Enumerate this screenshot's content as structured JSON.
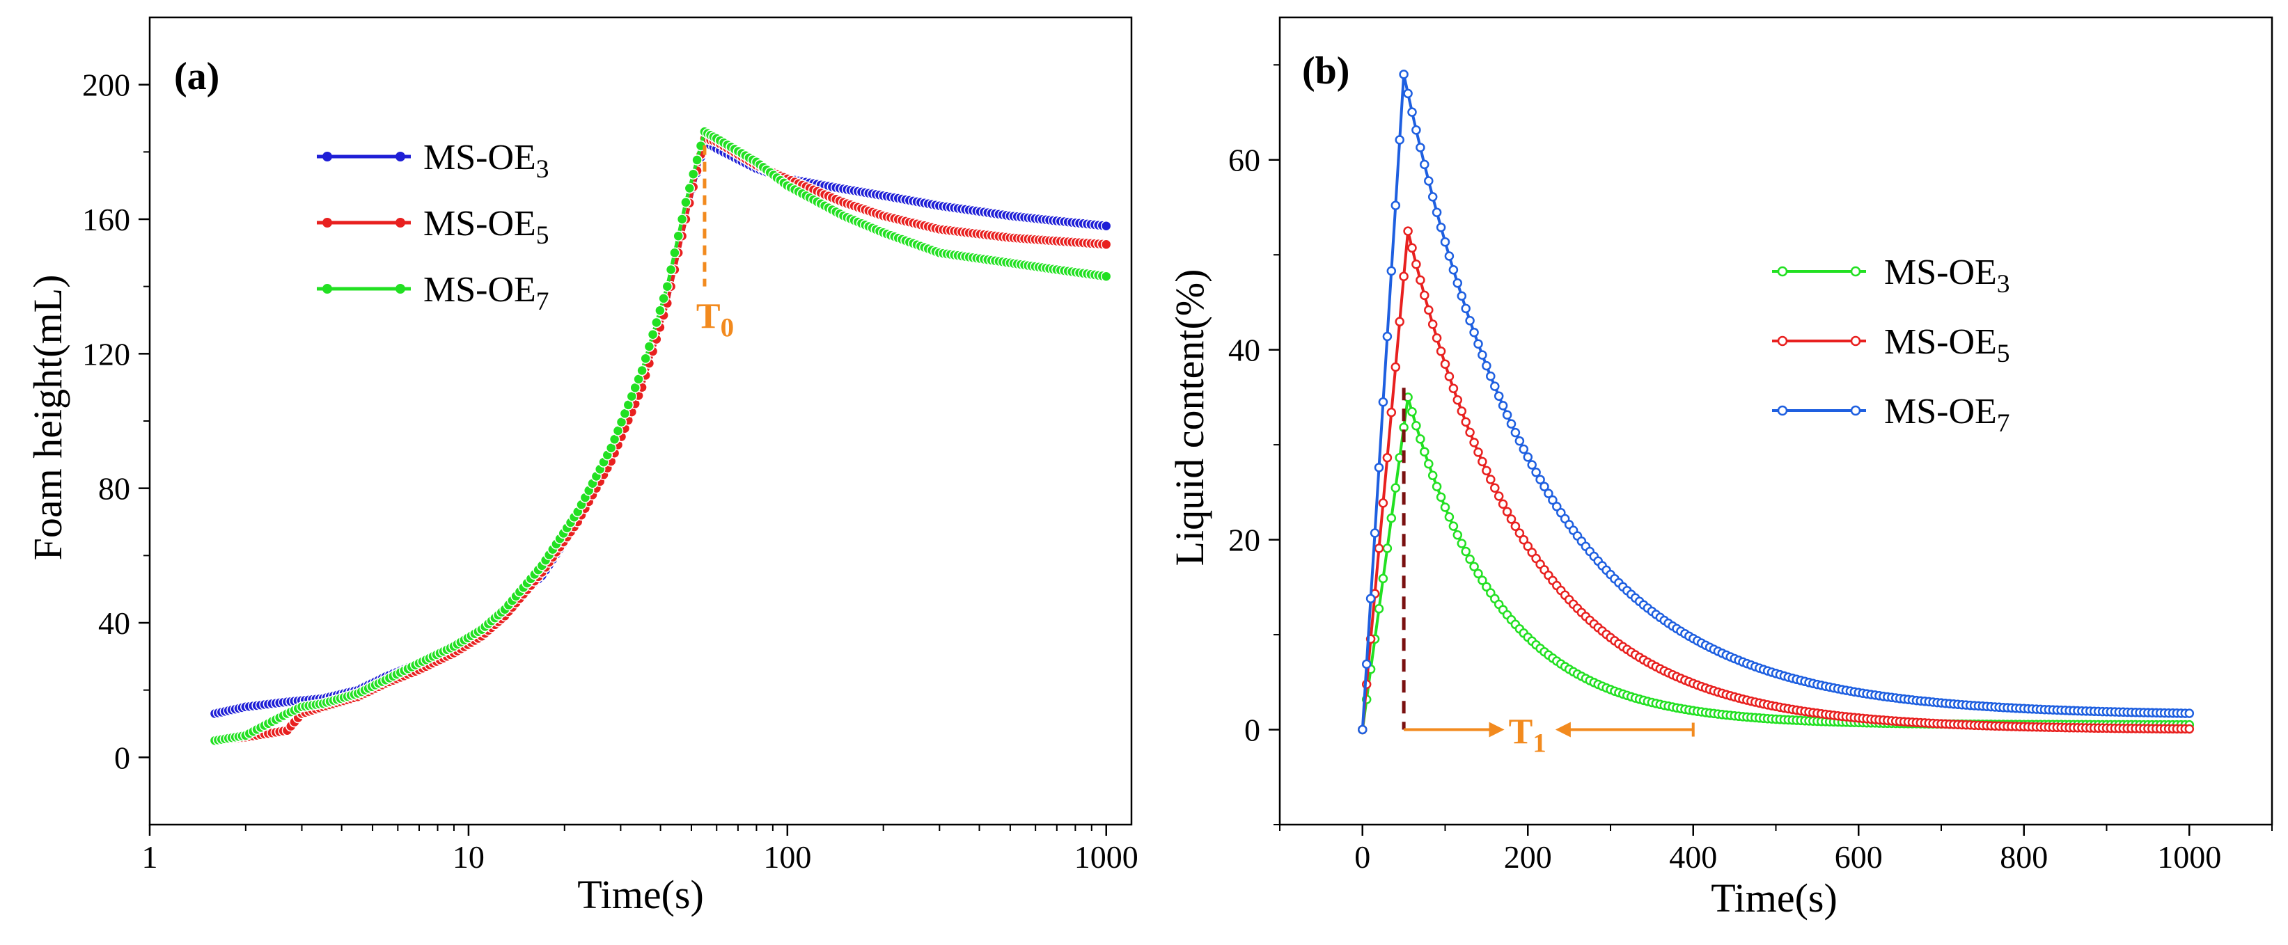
{
  "chart_data": [
    {
      "panel_label": "(a)",
      "type": "line",
      "x_scale": "log",
      "xlabel": "Time(s)",
      "ylabel": "Foam height(mL)",
      "xlim": [
        1,
        1200
      ],
      "ylim": [
        -20,
        220
      ],
      "x_ticks": [
        1,
        10,
        100,
        1000
      ],
      "x_tick_labels": [
        "1",
        "10",
        "100",
        "1000"
      ],
      "y_ticks": [
        0,
        40,
        80,
        120,
        160,
        200
      ],
      "y_tick_labels": [
        "0",
        "40",
        "80",
        "120",
        "160",
        "200"
      ],
      "legend_position": "top-left",
      "annotation": {
        "text": "T",
        "subscript": "0",
        "x": 55,
        "y_from": 182,
        "y_to": 140,
        "color": "#f28a1e"
      },
      "series": [
        {
          "name": "MS-OE",
          "subscript": "3",
          "color": "#1f1fd6",
          "points": [
            [
              1.6,
              13
            ],
            [
              2,
              15
            ],
            [
              2.7,
              16.5
            ],
            [
              3.5,
              17.5
            ],
            [
              4.5,
              20
            ],
            [
              5.5,
              24
            ],
            [
              7,
              28
            ],
            [
              9,
              33
            ],
            [
              11,
              38
            ],
            [
              13,
              44
            ],
            [
              17,
              54
            ],
            [
              22,
              70
            ],
            [
              28,
              88
            ],
            [
              35,
              110
            ],
            [
              42,
              135
            ],
            [
              48,
              160
            ],
            [
              55,
              183
            ],
            [
              60,
              181
            ],
            [
              80,
              175
            ],
            [
              100,
              172
            ],
            [
              150,
              169
            ],
            [
              200,
              167
            ],
            [
              300,
              164
            ],
            [
              500,
              161
            ],
            [
              700,
              159.5
            ],
            [
              1000,
              158
            ]
          ]
        },
        {
          "name": "MS-OE",
          "subscript": "5",
          "color": "#e8201f",
          "points": [
            [
              1.6,
              5
            ],
            [
              2,
              6
            ],
            [
              2.7,
              8
            ],
            [
              3,
              13
            ],
            [
              3.5,
              15
            ],
            [
              4.5,
              18
            ],
            [
              5.5,
              22
            ],
            [
              7,
              26
            ],
            [
              9,
              31
            ],
            [
              11,
              36
            ],
            [
              13,
              42
            ],
            [
              17,
              55
            ],
            [
              22,
              70
            ],
            [
              28,
              88
            ],
            [
              35,
              110
            ],
            [
              42,
              135
            ],
            [
              48,
              160
            ],
            [
              55,
              184
            ],
            [
              60,
              183
            ],
            [
              80,
              176
            ],
            [
              100,
              172
            ],
            [
              150,
              165
            ],
            [
              200,
              161
            ],
            [
              300,
              157
            ],
            [
              500,
              154.5
            ],
            [
              700,
              153.5
            ],
            [
              1000,
              152.5
            ]
          ]
        },
        {
          "name": "MS-OE",
          "subscript": "7",
          "color": "#22e022",
          "points": [
            [
              1.6,
              5
            ],
            [
              2,
              6.5
            ],
            [
              2.7,
              13
            ],
            [
              3,
              15
            ],
            [
              3.5,
              16
            ],
            [
              4.5,
              19
            ],
            [
              5.5,
              23
            ],
            [
              7,
              28
            ],
            [
              9,
              33
            ],
            [
              11,
              38
            ],
            [
              13,
              44
            ],
            [
              17,
              57
            ],
            [
              22,
              73
            ],
            [
              28,
              92
            ],
            [
              35,
              115
            ],
            [
              42,
              140
            ],
            [
              48,
              165
            ],
            [
              55,
              186
            ],
            [
              60,
              184
            ],
            [
              80,
              177
            ],
            [
              100,
              170
            ],
            [
              150,
              161
            ],
            [
              200,
              156
            ],
            [
              300,
              150
            ],
            [
              500,
              147
            ],
            [
              700,
              145
            ],
            [
              1000,
              143
            ]
          ]
        }
      ]
    },
    {
      "panel_label": "(b)",
      "type": "line",
      "x_scale": "linear",
      "xlabel": "Time(s)",
      "ylabel": "Liquid content(%)",
      "xlim": [
        -100,
        1100
      ],
      "ylim": [
        -10,
        75
      ],
      "x_ticks": [
        0,
        200,
        400,
        600,
        800,
        1000
      ],
      "x_tick_labels": [
        "0",
        "200",
        "400",
        "600",
        "800",
        "1000"
      ],
      "y_ticks": [
        0,
        20,
        40,
        60
      ],
      "y_tick_labels": [
        "0",
        "20",
        "40",
        "60"
      ],
      "legend_position": "center-right",
      "annotation": {
        "text": "T",
        "subscript": "1",
        "x_start": 50,
        "x_end": 400,
        "y": 0,
        "color": "#f28a1e",
        "dash_color": "#7a1010"
      },
      "series": [
        {
          "name": "MS-OE",
          "subscript": "3",
          "color": "#22e022",
          "peak_time": 55,
          "peak_value": 35,
          "final_value": 0.5,
          "decay_tau": 110
        },
        {
          "name": "MS-OE",
          "subscript": "5",
          "color": "#e8201f",
          "peak_time": 55,
          "peak_value": 52.5,
          "final_value": 0,
          "decay_tau": 145
        },
        {
          "name": "MS-OE",
          "subscript": "7",
          "color": "#1e5fe0",
          "peak_time": 50,
          "peak_value": 69,
          "final_value": 1.5,
          "decay_tau": 165
        }
      ]
    }
  ]
}
